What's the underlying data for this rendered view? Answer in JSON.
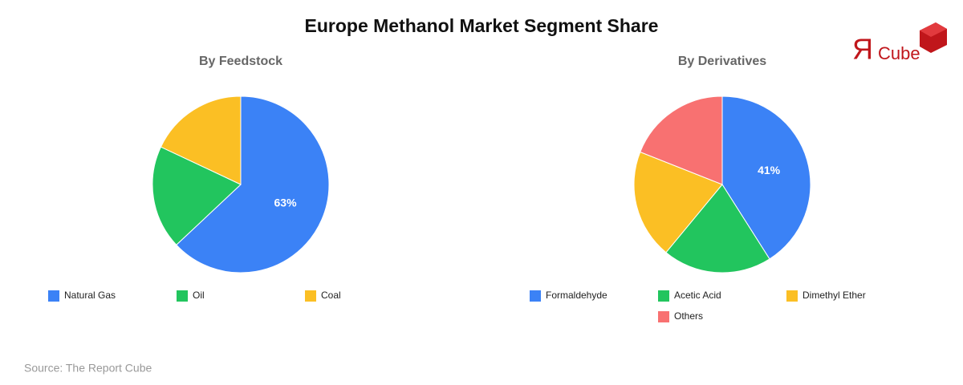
{
  "title": "Europe Methanol Market Segment Share",
  "logo": {
    "mark": "Я",
    "text": "Cube"
  },
  "source": "Source: The Report Cube",
  "chart_data": [
    {
      "type": "pie",
      "title": "By Feedstock",
      "categories": [
        "Natural Gas",
        "Oil",
        "Coal"
      ],
      "values": [
        63,
        19,
        18
      ],
      "value_labels": [
        "63%",
        null,
        null
      ],
      "colors": [
        "#3b82f6",
        "#22c55e",
        "#fbbf24"
      ]
    },
    {
      "type": "pie",
      "title": "By Derivatives",
      "categories": [
        "Formaldehyde",
        "Acetic Acid",
        "Dimethyl Ether",
        "Others"
      ],
      "values": [
        41,
        20,
        20,
        19
      ],
      "value_labels": [
        "41%",
        null,
        null,
        null
      ],
      "colors": [
        "#3b82f6",
        "#22c55e",
        "#fbbf24",
        "#f87171"
      ]
    }
  ]
}
